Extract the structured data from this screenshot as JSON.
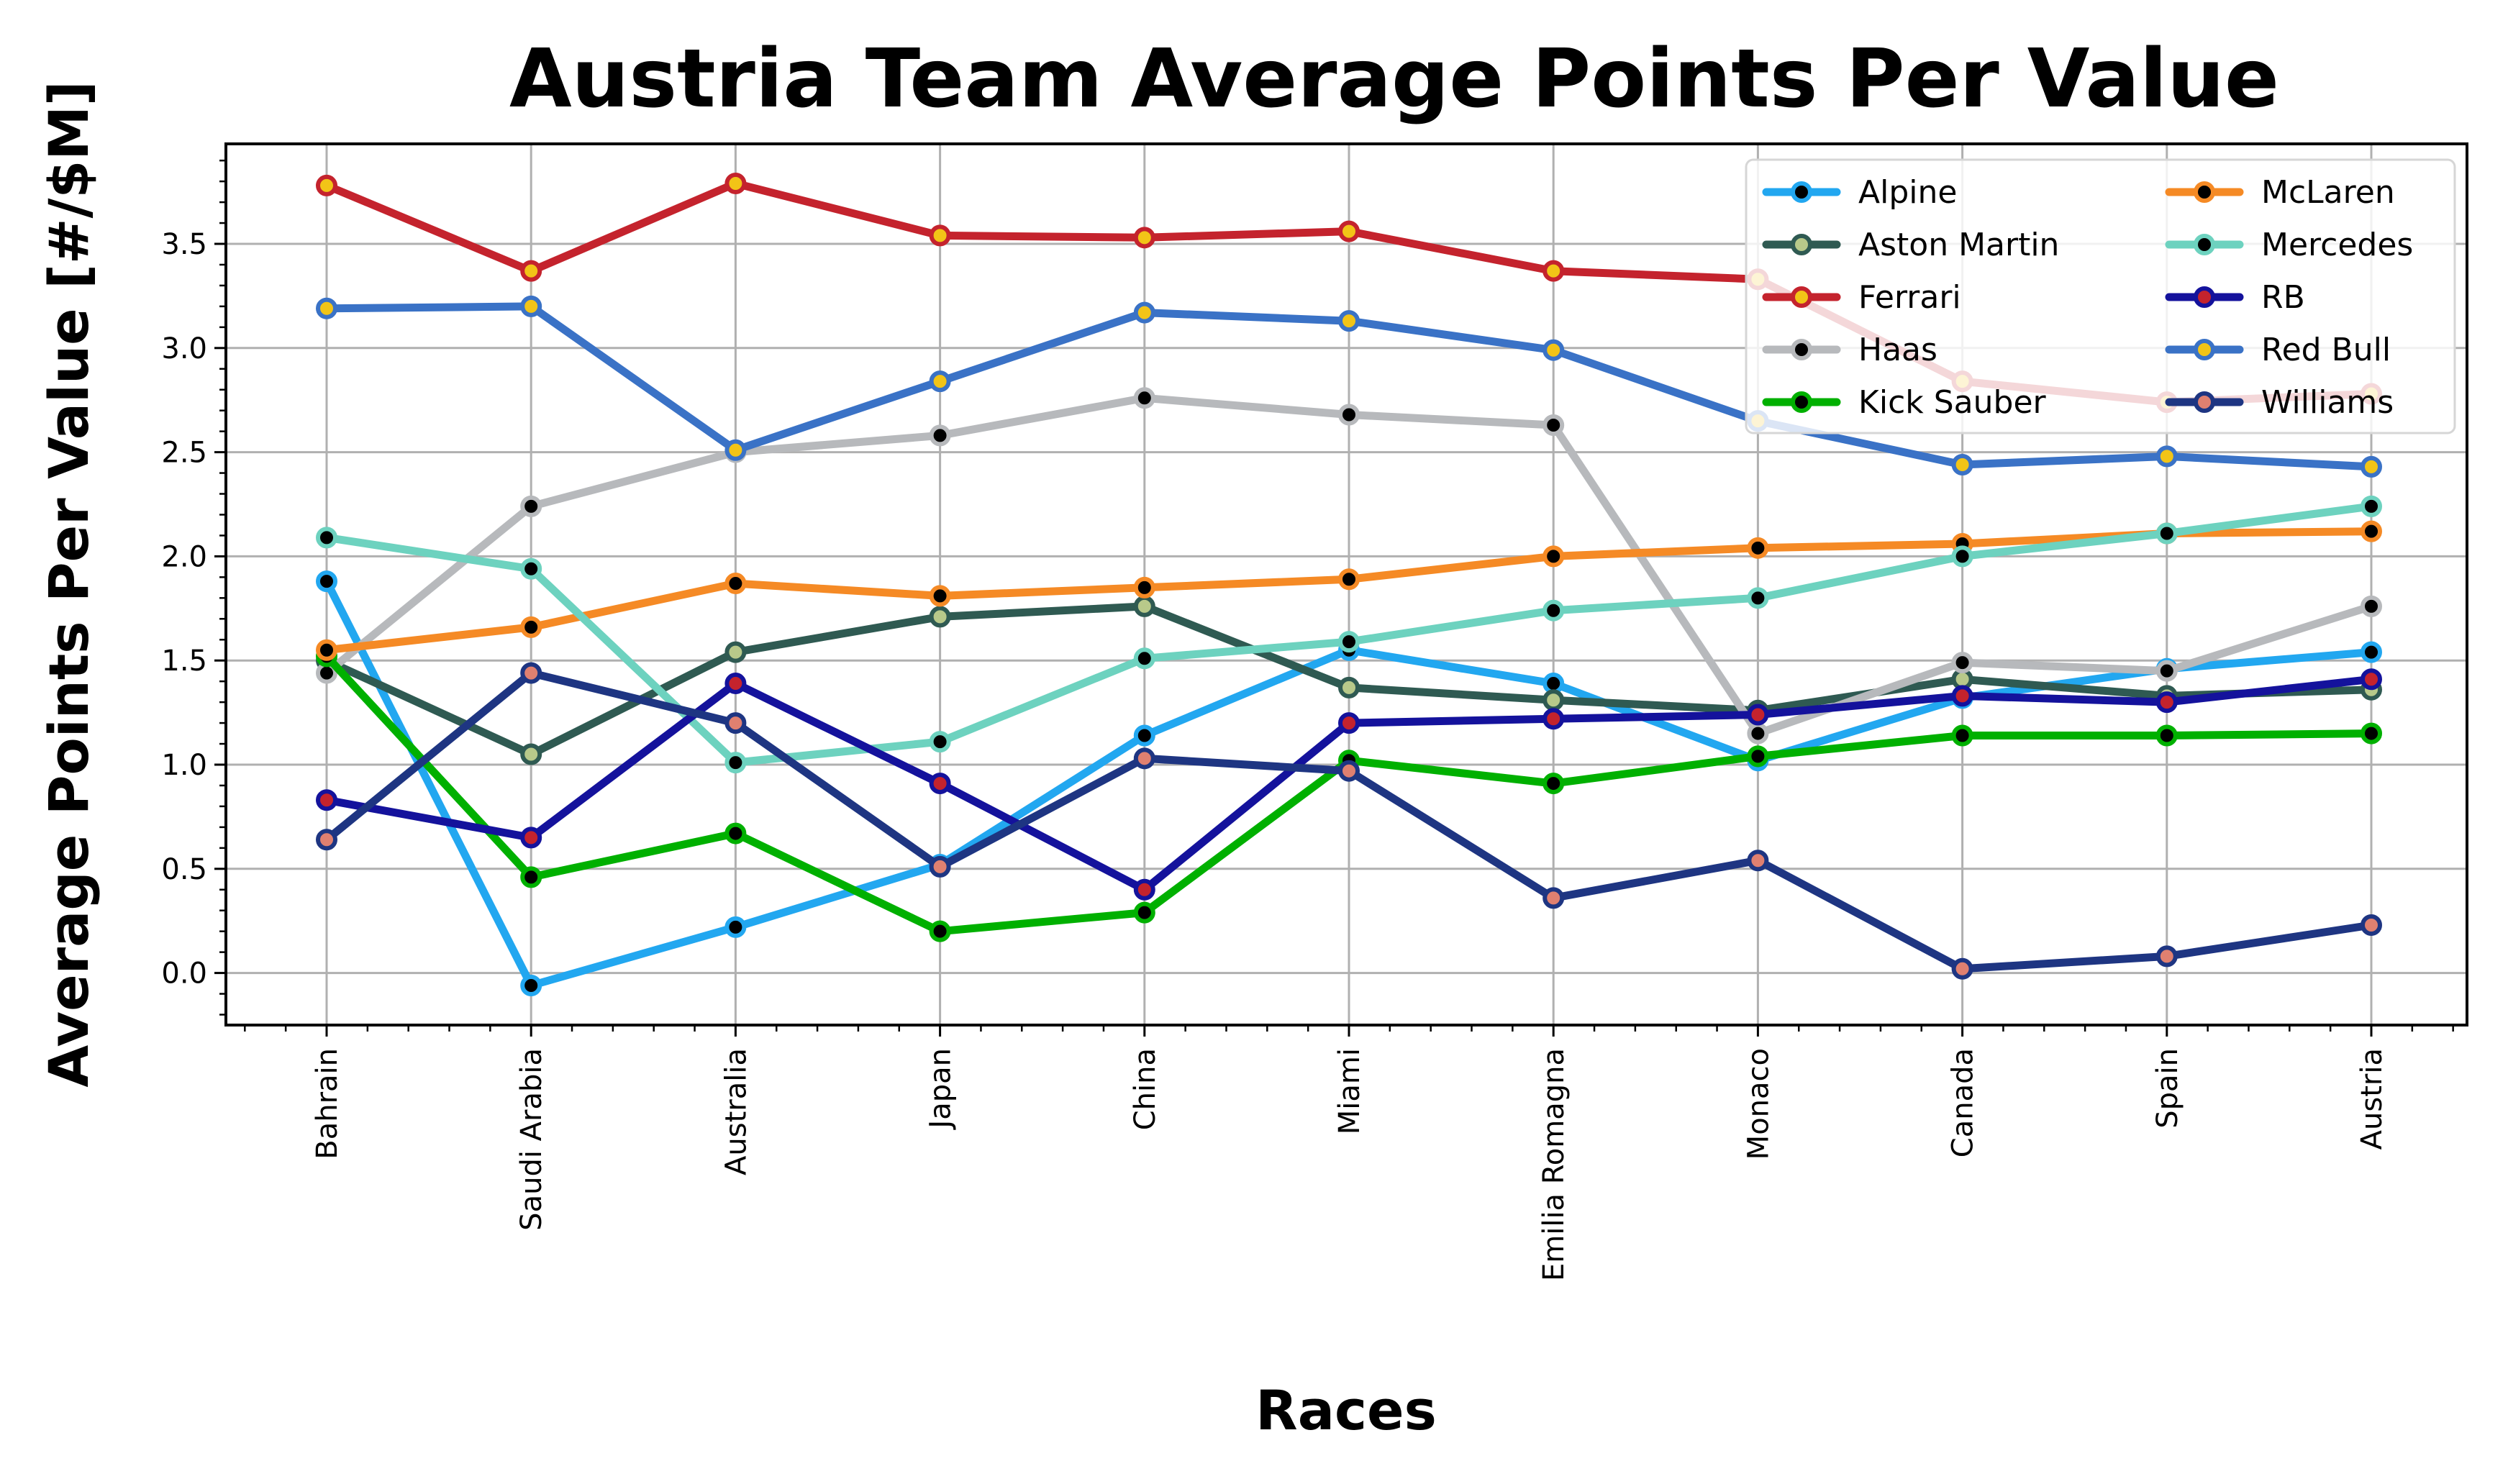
{
  "chart_data": {
    "type": "line",
    "title": "Austria Team Average Points Per Value",
    "xlabel": "Races",
    "ylabel": "Average Points Per Value [#/$M]",
    "categories": [
      "Bahrain",
      "Saudi Arabia",
      "Australia",
      "Japan",
      "China",
      "Miami",
      "Emilia Romagna",
      "Monaco",
      "Canada",
      "Spain",
      "Austria"
    ],
    "ylim": [
      -0.25,
      3.98
    ],
    "yticks": [
      0.0,
      0.5,
      1.0,
      1.5,
      2.0,
      2.5,
      3.0,
      3.5
    ],
    "ytick_labels": [
      "0.0",
      "0.5",
      "1.0",
      "1.5",
      "2.0",
      "2.5",
      "3.0",
      "3.5"
    ],
    "grid": true,
    "legend_position": "top-right",
    "series": [
      {
        "name": "Alpine",
        "color": "#22a7f0",
        "marker_face": "#000000",
        "marker_edge": "#22a7f0",
        "values": [
          1.88,
          -0.06,
          0.22,
          0.52,
          1.14,
          1.55,
          1.39,
          1.02,
          1.32,
          1.46,
          1.54
        ]
      },
      {
        "name": "Aston Martin",
        "color": "#2f5a52",
        "marker_face": "#b8c98a",
        "marker_edge": "#2f5a52",
        "values": [
          1.5,
          1.05,
          1.54,
          1.71,
          1.76,
          1.37,
          1.31,
          1.26,
          1.41,
          1.33,
          1.36
        ]
      },
      {
        "name": "Ferrari",
        "color": "#c4232d",
        "marker_face": "#f2c417",
        "marker_edge": "#c4232d",
        "values": [
          3.78,
          3.37,
          3.79,
          3.54,
          3.53,
          3.56,
          3.37,
          3.33,
          2.84,
          2.74,
          2.78
        ]
      },
      {
        "name": "Haas",
        "color": "#b7b9bc",
        "marker_face": "#000000",
        "marker_edge": "#b7b9bc",
        "values": [
          1.44,
          2.24,
          2.5,
          2.58,
          2.76,
          2.68,
          2.63,
          1.15,
          1.49,
          1.45,
          1.76
        ]
      },
      {
        "name": "Kick Sauber",
        "color": "#00b000",
        "marker_face": "#000000",
        "marker_edge": "#00b000",
        "values": [
          1.52,
          0.46,
          0.67,
          0.2,
          0.29,
          1.02,
          0.91,
          1.04,
          1.14,
          1.14,
          1.15
        ]
      },
      {
        "name": "McLaren",
        "color": "#f58a25",
        "marker_face": "#000000",
        "marker_edge": "#f58a25",
        "values": [
          1.55,
          1.66,
          1.87,
          1.81,
          1.85,
          1.89,
          2.0,
          2.04,
          2.06,
          2.11,
          2.12
        ]
      },
      {
        "name": "Mercedes",
        "color": "#6dd2bf",
        "marker_face": "#000000",
        "marker_edge": "#6dd2bf",
        "values": [
          2.09,
          1.94,
          1.01,
          1.11,
          1.51,
          1.59,
          1.74,
          1.8,
          2.0,
          2.11,
          2.24
        ]
      },
      {
        "name": "RB",
        "color": "#14129c",
        "marker_face": "#c4232d",
        "marker_edge": "#14129c",
        "values": [
          0.83,
          0.65,
          1.39,
          0.91,
          0.4,
          1.2,
          1.22,
          1.24,
          1.33,
          1.3,
          1.41
        ]
      },
      {
        "name": "Red Bull",
        "color": "#3a72c6",
        "marker_face": "#f2c417",
        "marker_edge": "#3a72c6",
        "values": [
          3.19,
          3.2,
          2.51,
          2.84,
          3.17,
          3.13,
          2.99,
          2.65,
          2.44,
          2.48,
          2.43
        ]
      },
      {
        "name": "Williams",
        "color": "#1e3582",
        "marker_face": "#e08070",
        "marker_edge": "#1e3582",
        "values": [
          0.64,
          1.44,
          1.2,
          0.51,
          1.03,
          0.97,
          0.36,
          0.54,
          0.02,
          0.08,
          0.23
        ]
      }
    ]
  }
}
